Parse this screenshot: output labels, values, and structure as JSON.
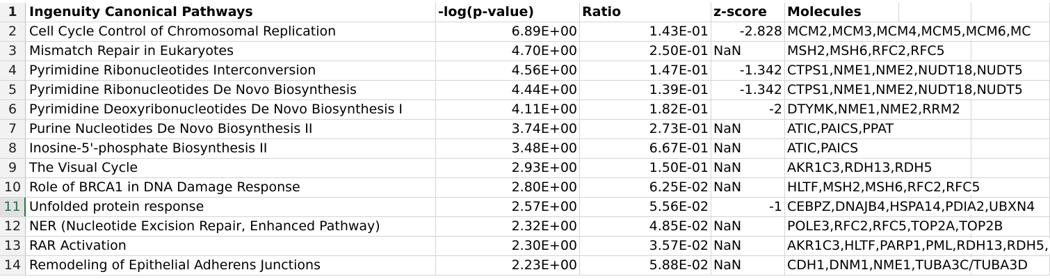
{
  "sheet": {
    "headers": [
      "Ingenuity Canonical Pathways",
      "-log(p-value)",
      "Ratio",
      "z-score",
      "Molecules"
    ],
    "rows": [
      {
        "num": "2",
        "pathway": "Cell Cycle Control of Chromosomal Replication",
        "logp": "6.89E+00",
        "ratio": "1.43E-01",
        "z": "-2.828",
        "molecules": "MCM2,MCM3,MCM4,MCM5,MCM6,MC"
      },
      {
        "num": "3",
        "pathway": "Mismatch Repair in Eukaryotes",
        "logp": "4.70E+00",
        "ratio": "2.50E-01",
        "z": "NaN",
        "molecules": "MSH2,MSH6,RFC2,RFC5"
      },
      {
        "num": "4",
        "pathway": "Pyrimidine Ribonucleotides Interconversion",
        "logp": "4.56E+00",
        "ratio": "1.47E-01",
        "z": "-1.342",
        "molecules": "CTPS1,NME1,NME2,NUDT18,NUDT5"
      },
      {
        "num": "5",
        "pathway": "Pyrimidine Ribonucleotides De Novo Biosynthesis",
        "logp": "4.44E+00",
        "ratio": "1.39E-01",
        "z": "-1.342",
        "molecules": "CTPS1,NME1,NME2,NUDT18,NUDT5"
      },
      {
        "num": "6",
        "pathway": "Pyrimidine Deoxyribonucleotides De Novo Biosynthesis I",
        "logp": "4.11E+00",
        "ratio": "1.82E-01",
        "z": "-2",
        "molecules": "DTYMK,NME1,NME2,RRM2"
      },
      {
        "num": "7",
        "pathway": "Purine Nucleotides De Novo Biosynthesis II",
        "logp": "3.74E+00",
        "ratio": "2.73E-01",
        "z": "NaN",
        "molecules": "ATIC,PAICS,PPAT"
      },
      {
        "num": "8",
        "pathway": "Inosine-5'-phosphate Biosynthesis II",
        "logp": "3.48E+00",
        "ratio": "6.67E-01",
        "z": "NaN",
        "molecules": "ATIC,PAICS"
      },
      {
        "num": "9",
        "pathway": "The Visual Cycle",
        "logp": "2.93E+00",
        "ratio": "1.50E-01",
        "z": "NaN",
        "molecules": "AKR1C3,RDH13,RDH5"
      },
      {
        "num": "10",
        "pathway": "Role of BRCA1 in DNA Damage Response",
        "logp": "2.80E+00",
        "ratio": "6.25E-02",
        "z": "NaN",
        "molecules": "HLTF,MSH2,MSH6,RFC2,RFC5"
      },
      {
        "num": "11",
        "pathway": "Unfolded protein response",
        "logp": "2.57E+00",
        "ratio": "5.56E-02",
        "z": "-1",
        "molecules": "CEBPZ,DNAJB4,HSPA14,PDIA2,UBXN4"
      },
      {
        "num": "12",
        "pathway": "NER (Nucleotide Excision Repair, Enhanced Pathway)",
        "logp": "2.32E+00",
        "ratio": "4.85E-02",
        "z": "NaN",
        "molecules": "POLE3,RFC2,RFC5,TOP2A,TOP2B"
      },
      {
        "num": "13",
        "pathway": "RAR Activation",
        "logp": "2.30E+00",
        "ratio": "3.57E-02",
        "z": "NaN",
        "molecules": "AKR1C3,HLTF,PARP1,PML,RDH13,RDH5,"
      },
      {
        "num": "14",
        "pathway": "Remodeling of Epithelial Adherens Junctions",
        "logp": "2.23E+00",
        "ratio": "5.88E-02",
        "z": "NaN",
        "molecules": "CDH1,DNM1,NME1,TUBA3C/TUBA3D"
      }
    ],
    "header_row_num": "1",
    "active_row": "11"
  }
}
